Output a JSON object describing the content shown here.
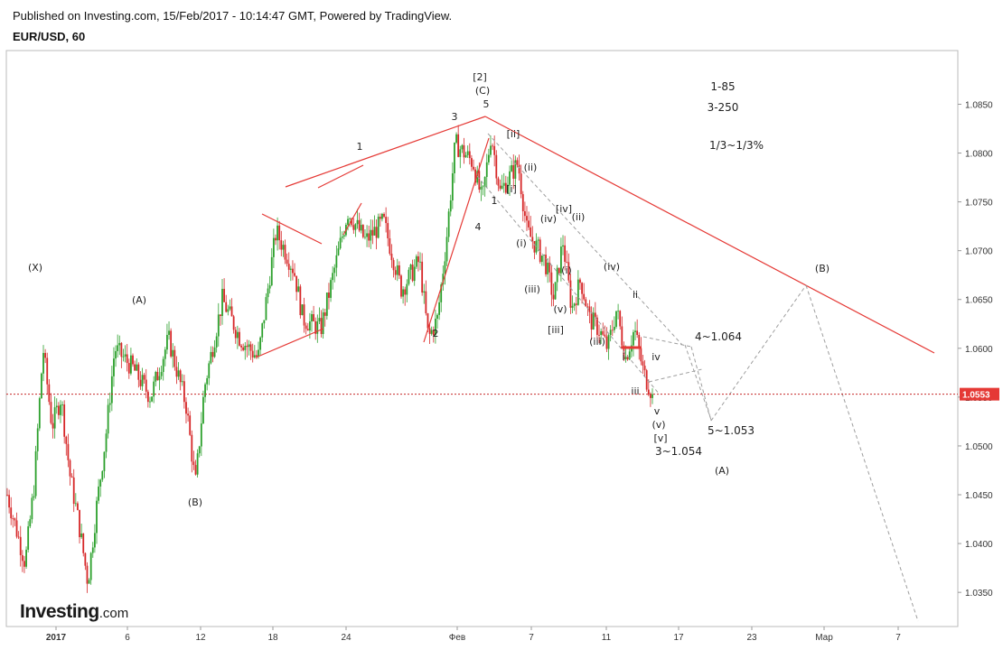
{
  "header": {
    "published": "Published on Investing.com, 15/Feb/2017 - 10:14:47 GMT, Powered by TradingView.",
    "symbol": "EUR/USD, 60"
  },
  "logo": {
    "main": "Investing",
    "suffix": ".com"
  },
  "colors": {
    "up_candle": "#2ca02c",
    "down_candle": "#d62728",
    "trendline": "#e53935",
    "projection": "#9e9e9e",
    "price_line": "#c62828",
    "price_badge": "#e53935"
  },
  "chart_data": {
    "type": "candlestick",
    "ylim": [
      1.0315,
      1.0905
    ],
    "y_ticks": [
      "1.0350",
      "1.0400",
      "1.0450",
      "1.0500",
      "1.0550",
      "1.0600",
      "1.0650",
      "1.0700",
      "1.0750",
      "1.0800",
      "1.0850"
    ],
    "x_ticks": [
      "2017",
      "6",
      "12",
      "18",
      "24",
      "Фев",
      "7",
      "11",
      "17",
      "23",
      "Мар",
      "7"
    ],
    "current_price": "1.0553",
    "price_path": [
      [
        0,
        1.045
      ],
      [
        0.02,
        1.038
      ],
      [
        0.03,
        1.046
      ],
      [
        0.04,
        1.06
      ],
      [
        0.05,
        1.052
      ],
      [
        0.06,
        1.055
      ],
      [
        0.07,
        1.047
      ],
      [
        0.08,
        1.042
      ],
      [
        0.09,
        1.036
      ],
      [
        0.1,
        1.044
      ],
      [
        0.11,
        1.051
      ],
      [
        0.12,
        1.06
      ],
      [
        0.14,
        1.058
      ],
      [
        0.16,
        1.055
      ],
      [
        0.18,
        1.061
      ],
      [
        0.2,
        1.054
      ],
      [
        0.21,
        1.046
      ],
      [
        0.22,
        1.056
      ],
      [
        0.24,
        1.065
      ],
      [
        0.26,
        1.061
      ],
      [
        0.28,
        1.059
      ],
      [
        0.3,
        1.072
      ],
      [
        0.32,
        1.068
      ],
      [
        0.33,
        1.063
      ],
      [
        0.35,
        1.062
      ],
      [
        0.36,
        1.066
      ],
      [
        0.38,
        1.074
      ],
      [
        0.4,
        1.071
      ],
      [
        0.42,
        1.073
      ],
      [
        0.44,
        1.066
      ],
      [
        0.46,
        1.069
      ],
      [
        0.47,
        1.061
      ],
      [
        0.48,
        1.063
      ],
      [
        0.49,
        1.071
      ],
      [
        0.5,
        1.081
      ],
      [
        0.52,
        1.079
      ],
      [
        0.53,
        1.075
      ],
      [
        0.54,
        1.082
      ],
      [
        0.55,
        1.076
      ],
      [
        0.57,
        1.079
      ],
      [
        0.58,
        1.072
      ],
      [
        0.6,
        1.069
      ],
      [
        0.61,
        1.065
      ],
      [
        0.62,
        1.071
      ],
      [
        0.63,
        1.064
      ],
      [
        0.64,
        1.067
      ],
      [
        0.65,
        1.063
      ],
      [
        0.66,
        1.062
      ],
      [
        0.67,
        1.06
      ],
      [
        0.68,
        1.064
      ],
      [
        0.69,
        1.059
      ],
      [
        0.7,
        1.062
      ],
      [
        0.71,
        1.0575
      ],
      [
        0.72,
        1.0553
      ]
    ],
    "annotations": [
      {
        "text": "(X)"
      },
      {
        "text": "(A)"
      },
      {
        "text": "(B)"
      },
      {
        "text": "1"
      },
      {
        "text": "2"
      },
      {
        "text": "3"
      },
      {
        "text": "4"
      },
      {
        "text": "5"
      },
      {
        "text": "[2]"
      },
      {
        "text": "(C)"
      },
      {
        "text": "[ii]"
      },
      {
        "text": "[i]"
      },
      {
        "text": "(ii)"
      },
      {
        "text": "(i)"
      },
      {
        "text": "(iii)"
      },
      {
        "text": "(iv)"
      },
      {
        "text": "[iv]"
      },
      {
        "text": "(v)"
      },
      {
        "text": "[iii]"
      },
      {
        "text": "i"
      },
      {
        "text": "ii"
      },
      {
        "text": "iii"
      },
      {
        "text": "iv"
      },
      {
        "text": "v"
      },
      {
        "text": "[v]"
      },
      {
        "text": "1-85"
      },
      {
        "text": "3-250"
      },
      {
        "text": "1/3~1/3%"
      },
      {
        "text": "4~1.064"
      },
      {
        "text": "5~1.053"
      },
      {
        "text": "3~1.054"
      }
    ],
    "grid": false
  }
}
